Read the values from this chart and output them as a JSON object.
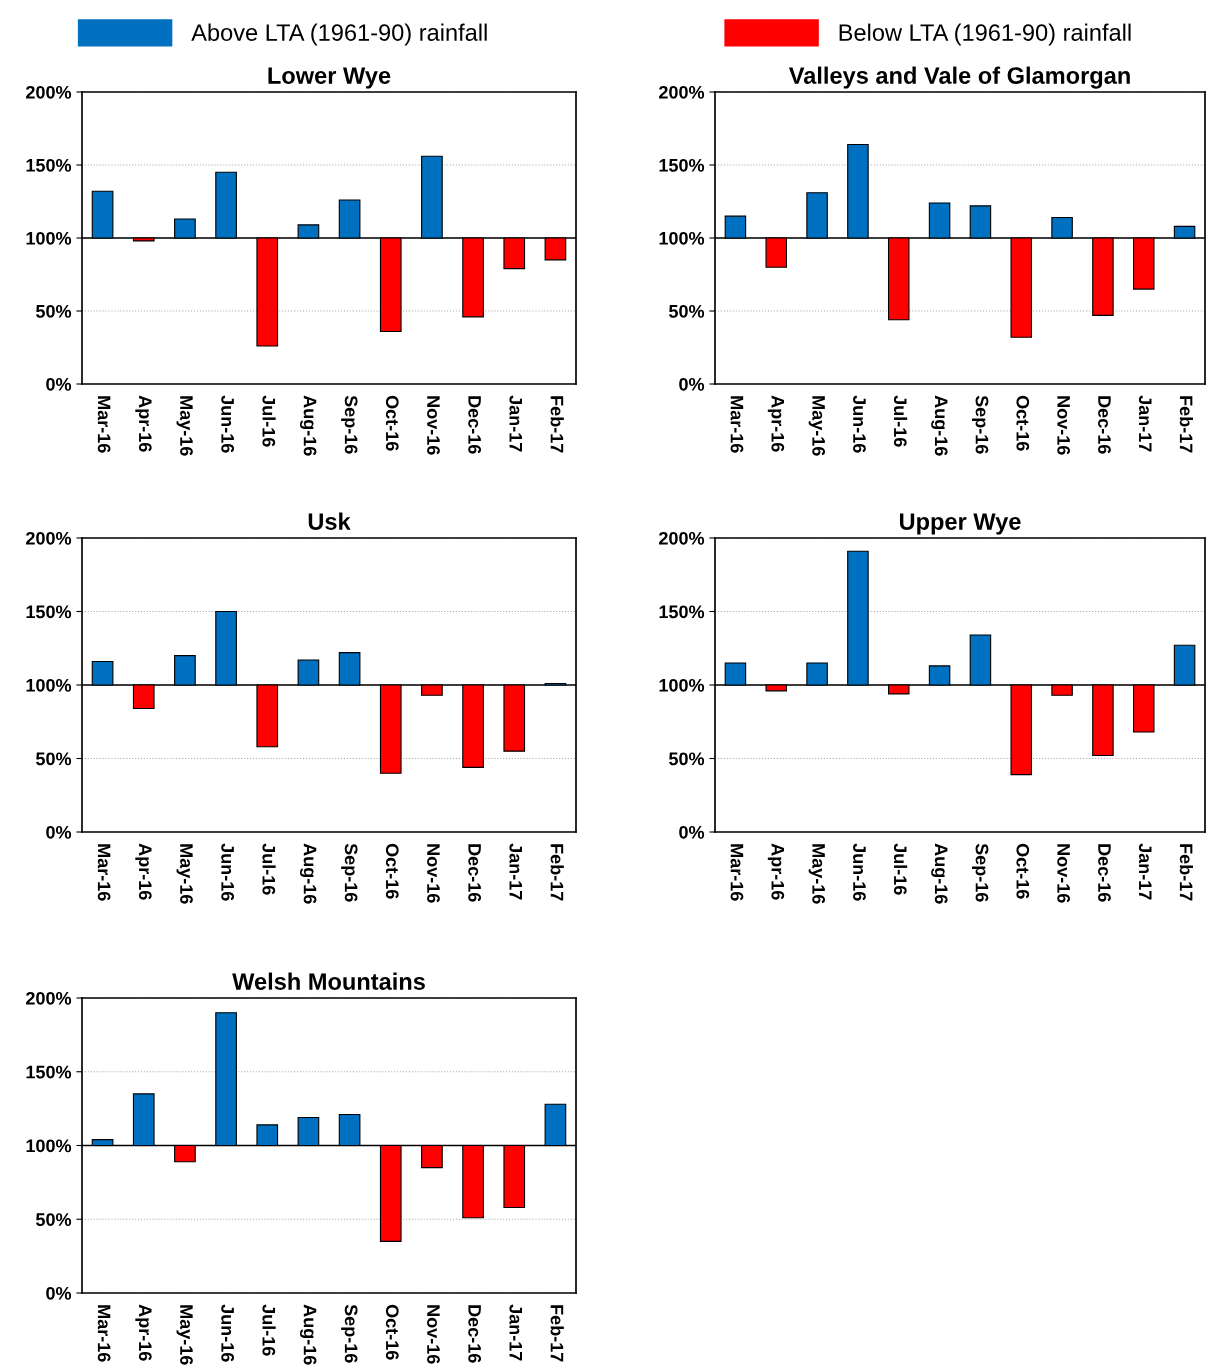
{
  "chart_data": [
    {
      "type": "bar",
      "title": "Lower Wye",
      "legend": "top",
      "grid": "y",
      "categories": [
        "Mar-16",
        "Apr-16",
        "May-16",
        "Jun-16",
        "Jul-16",
        "Aug-16",
        "Sep-16",
        "Oct-16",
        "Nov-16",
        "Dec-16",
        "Jan-17",
        "Feb-17"
      ],
      "series": [
        {
          "name": "Above LTA (1961-90) rainfall",
          "color": "#0070c0",
          "base": [
            100,
            null,
            100,
            100,
            null,
            100,
            100,
            null,
            100,
            null,
            null,
            null
          ],
          "values": [
            32,
            null,
            13,
            45,
            null,
            9,
            26,
            null,
            56,
            null,
            null,
            null
          ]
        },
        {
          "name": "Below LTA (1961-90) rainfall",
          "color": "#ff0000",
          "base": [
            null,
            100,
            null,
            null,
            100,
            null,
            null,
            100,
            null,
            100,
            100,
            100
          ],
          "values": [
            null,
            -2,
            null,
            null,
            -74,
            null,
            null,
            -64,
            null,
            -54,
            -21,
            -15
          ]
        }
      ],
      "ylim": [
        0,
        200
      ],
      "yticks": [
        {
          "value": 0,
          "label": "0%"
        },
        {
          "value": 50,
          "label": "50%"
        },
        {
          "value": 100,
          "label": "100%"
        },
        {
          "value": 150,
          "label": "150%"
        },
        {
          "value": 200,
          "label": "200%"
        }
      ],
      "ref_lines": [
        {
          "axis": "y",
          "value": 100,
          "color": "#000000"
        }
      ]
    },
    {
      "type": "bar",
      "title": "Valleys and Vale of Glamorgan",
      "grid": "y",
      "categories": [
        "Mar-16",
        "Apr-16",
        "May-16",
        "Jun-16",
        "Jul-16",
        "Aug-16",
        "Sep-16",
        "Oct-16",
        "Nov-16",
        "Dec-16",
        "Jan-17",
        "Feb-17"
      ],
      "series": [
        {
          "color": "#0070c0",
          "base": [
            100,
            null,
            100,
            100,
            null,
            100,
            100,
            null,
            100,
            null,
            null,
            100
          ],
          "values": [
            15,
            null,
            31,
            64,
            null,
            24,
            22,
            null,
            14,
            null,
            null,
            8
          ]
        },
        {
          "color": "#ff0000",
          "base": [
            null,
            100,
            null,
            null,
            100,
            null,
            null,
            100,
            null,
            100,
            100,
            null
          ],
          "values": [
            null,
            -20,
            null,
            null,
            -56,
            null,
            null,
            -68,
            null,
            -53,
            -35,
            null
          ]
        }
      ],
      "ylim": [
        0,
        200
      ],
      "yticks": [
        {
          "value": 0,
          "label": "0%"
        },
        {
          "value": 50,
          "label": "50%"
        },
        {
          "value": 100,
          "label": "100%"
        },
        {
          "value": 150,
          "label": "150%"
        },
        {
          "value": 200,
          "label": "200%"
        }
      ],
      "ref_lines": [
        {
          "axis": "y",
          "value": 100,
          "color": "#000000"
        }
      ]
    },
    {
      "type": "bar",
      "title": "Usk",
      "grid": "y",
      "categories": [
        "Mar-16",
        "Apr-16",
        "May-16",
        "Jun-16",
        "Jul-16",
        "Aug-16",
        "Sep-16",
        "Oct-16",
        "Nov-16",
        "Dec-16",
        "Jan-17",
        "Feb-17"
      ],
      "series": [
        {
          "color": "#0070c0",
          "base": [
            100,
            null,
            100,
            100,
            null,
            100,
            100,
            null,
            null,
            null,
            null,
            100
          ],
          "values": [
            16,
            null,
            20,
            50,
            null,
            17,
            22,
            null,
            null,
            null,
            null,
            1
          ]
        },
        {
          "color": "#ff0000",
          "base": [
            null,
            100,
            null,
            null,
            100,
            null,
            null,
            100,
            100,
            100,
            100,
            null
          ],
          "values": [
            null,
            -16,
            null,
            null,
            -42,
            null,
            null,
            -60,
            -7,
            -56,
            -45,
            null
          ]
        }
      ],
      "ylim": [
        0,
        200
      ],
      "yticks": [
        {
          "value": 0,
          "label": "0%"
        },
        {
          "value": 50,
          "label": "50%"
        },
        {
          "value": 100,
          "label": "100%"
        },
        {
          "value": 150,
          "label": "150%"
        },
        {
          "value": 200,
          "label": "200%"
        }
      ],
      "ref_lines": [
        {
          "axis": "y",
          "value": 100,
          "color": "#000000"
        }
      ]
    },
    {
      "type": "bar",
      "title": "Upper Wye",
      "grid": "y",
      "categories": [
        "Mar-16",
        "Apr-16",
        "May-16",
        "Jun-16",
        "Jul-16",
        "Aug-16",
        "Sep-16",
        "Oct-16",
        "Nov-16",
        "Dec-16",
        "Jan-17",
        "Feb-17"
      ],
      "series": [
        {
          "color": "#0070c0",
          "base": [
            100,
            null,
            100,
            100,
            null,
            100,
            100,
            null,
            null,
            null,
            null,
            100
          ],
          "values": [
            15,
            null,
            15,
            91,
            null,
            13,
            34,
            null,
            null,
            null,
            null,
            27
          ]
        },
        {
          "color": "#ff0000",
          "base": [
            null,
            100,
            null,
            null,
            100,
            null,
            null,
            100,
            100,
            100,
            100,
            null
          ],
          "values": [
            null,
            -4,
            null,
            null,
            -6,
            null,
            null,
            -61,
            -7,
            -48,
            -32,
            null
          ]
        }
      ],
      "ylim": [
        0,
        200
      ],
      "yticks": [
        {
          "value": 0,
          "label": "0%"
        },
        {
          "value": 50,
          "label": "50%"
        },
        {
          "value": 100,
          "label": "100%"
        },
        {
          "value": 150,
          "label": "150%"
        },
        {
          "value": 200,
          "label": "200%"
        }
      ],
      "ref_lines": [
        {
          "axis": "y",
          "value": 100,
          "color": "#000000"
        }
      ]
    },
    {
      "type": "bar",
      "title": "Welsh Mountains",
      "grid": "y",
      "categories": [
        "Mar-16",
        "Apr-16",
        "May-16",
        "Jun-16",
        "Jul-16",
        "Aug-16",
        "Sep-16",
        "Oct-16",
        "Nov-16",
        "Dec-16",
        "Jan-17",
        "Feb-17"
      ],
      "series": [
        {
          "color": "#0070c0",
          "base": [
            100,
            100,
            null,
            100,
            100,
            100,
            100,
            null,
            null,
            null,
            null,
            100
          ],
          "values": [
            4,
            35,
            null,
            90,
            14,
            19,
            21,
            null,
            null,
            null,
            null,
            28
          ]
        },
        {
          "color": "#ff0000",
          "base": [
            null,
            null,
            100,
            null,
            null,
            null,
            null,
            100,
            100,
            100,
            100,
            null
          ],
          "values": [
            null,
            null,
            -11,
            null,
            null,
            null,
            null,
            -65,
            -15,
            -49,
            -42,
            null
          ]
        }
      ],
      "ylim": [
        0,
        200
      ],
      "yticks": [
        {
          "value": 0,
          "label": "0%"
        },
        {
          "value": 50,
          "label": "50%"
        },
        {
          "value": 100,
          "label": "100%"
        },
        {
          "value": 150,
          "label": "150%"
        },
        {
          "value": 200,
          "label": "200%"
        }
      ],
      "ref_lines": [
        {
          "axis": "y",
          "value": 100,
          "color": "#000000"
        }
      ]
    }
  ]
}
